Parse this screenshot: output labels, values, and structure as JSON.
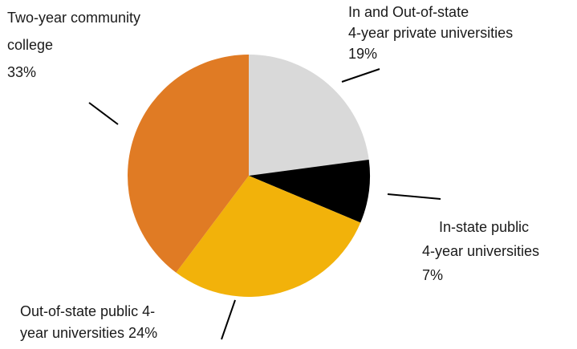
{
  "chart_data": {
    "type": "pie",
    "title": "",
    "slices": [
      {
        "label_lines": [
          "In and Out-of-state",
          "4-year private universities",
          "19%"
        ],
        "value": 19,
        "color": "#d9d9d9"
      },
      {
        "label_lines": [
          "In-state public",
          "4-year universities",
          "7%"
        ],
        "value": 7,
        "color": "#000000"
      },
      {
        "label_lines": [
          "Out-of-state public 4-",
          "year universities 24%"
        ],
        "value": 24,
        "color": "#f2b20a"
      },
      {
        "label_lines": [
          "Two-year community",
          "college",
          "33%"
        ],
        "value": 33,
        "color": "#e07b24"
      }
    ]
  }
}
